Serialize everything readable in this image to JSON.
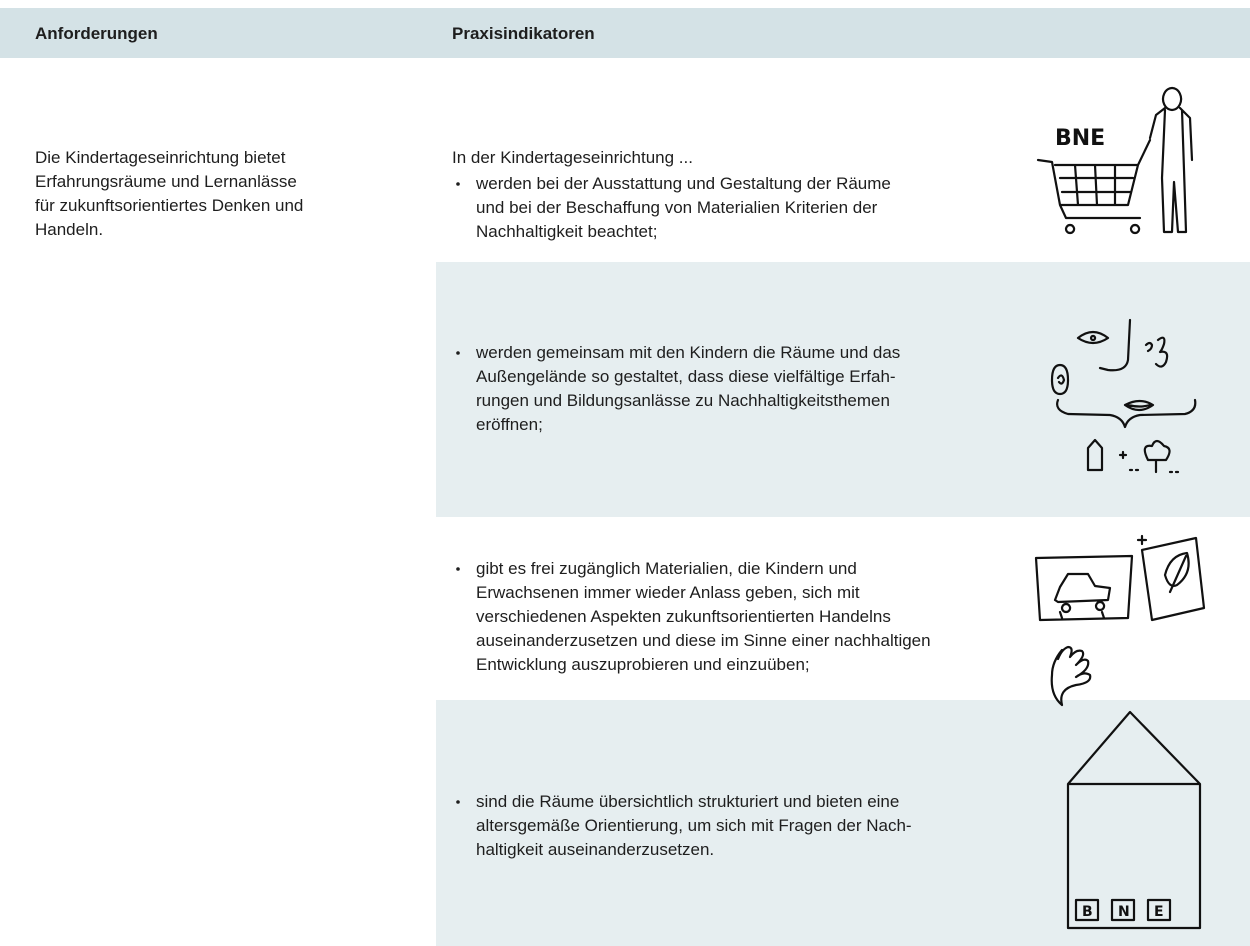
{
  "header": {
    "col1": "Anforderungen",
    "col2": "Praxisindikatoren"
  },
  "left": {
    "lines": [
      "Die Kindertageseinrichtung bietet",
      "Erfahrungsräume und Lernanlässe",
      "für zukunftsorientiertes Denken und",
      "Handeln."
    ]
  },
  "intro": "In der Kindertageseinrichtung ...",
  "items": [
    {
      "lines": [
        "werden bei der Ausstattung und Gestaltung der Räume",
        "und bei der Beschaffung von Materialien Kriterien der",
        "Nachhaltigkeit beachtet;"
      ]
    },
    {
      "lines": [
        "werden gemeinsam mit den Kindern die Räume und das",
        "Außengelände so gestaltet, dass diese vielfältige Erfah-",
        "rungen und Bildungsanlässe zu Nachhaltigkeitsthemen",
        "eröffnen;"
      ]
    },
    {
      "lines": [
        "gibt es frei zugänglich Materialien, die Kindern und",
        "Erwachsenen immer wieder Anlass geben, sich mit",
        "verschiedenen Aspekten zukunftsorientierten Handelns",
        "auseinanderzusetzen und diese im Sinne einer nachhaltigen",
        "Entwicklung auszuprobieren und einzuüben;"
      ]
    },
    {
      "lines": [
        "sind die Räume übersichtlich strukturiert und bieten eine",
        "altersgemäße Orientierung, um sich mit Fragen der Nach-",
        "haltigkeit auseinanderzusetzen."
      ]
    }
  ],
  "illustration_labels": {
    "cart": "BNE",
    "house": [
      "B",
      "N",
      "E"
    ]
  }
}
